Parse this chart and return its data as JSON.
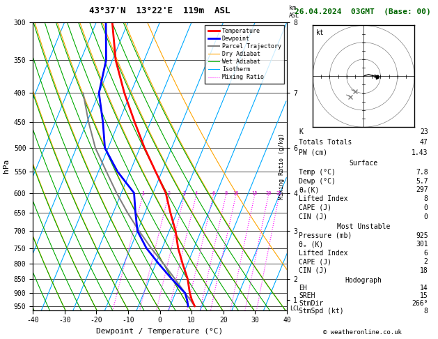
{
  "title_left": "43°37'N  13°22'E  119m  ASL",
  "title_right": "26.04.2024  03GMT  (Base: 00)",
  "xlabel": "Dewpoint / Temperature (°C)",
  "ylabel_left": "hPa",
  "xlim": [
    -40,
    40
  ],
  "pressure_ticks": [
    300,
    350,
    400,
    450,
    500,
    550,
    600,
    650,
    700,
    750,
    800,
    850,
    900,
    950
  ],
  "km_ticks_p": [
    300,
    400,
    500,
    600,
    700,
    850,
    925
  ],
  "km_ticks_v": [
    8,
    7,
    6,
    4,
    3,
    2,
    1
  ],
  "temp_profile": {
    "pressure": [
      950,
      925,
      900,
      850,
      800,
      750,
      700,
      650,
      600,
      550,
      500,
      450,
      400,
      350,
      300
    ],
    "temp": [
      7.8,
      6.0,
      4.5,
      2.0,
      -1.5,
      -5.0,
      -8.0,
      -12.0,
      -16.0,
      -22.0,
      -28.5,
      -35.0,
      -42.0,
      -49.0,
      -55.0
    ]
  },
  "dewpoint_profile": {
    "pressure": [
      950,
      925,
      900,
      850,
      800,
      750,
      700,
      650,
      600,
      550,
      500,
      450,
      400,
      350,
      300
    ],
    "temp": [
      5.7,
      4.5,
      3.0,
      -3.0,
      -9.0,
      -15.0,
      -20.0,
      -23.0,
      -26.0,
      -34.0,
      -41.0,
      -45.0,
      -50.0,
      -52.0,
      -57.0
    ]
  },
  "parcel_profile": {
    "pressure": [
      950,
      925,
      900,
      850,
      800,
      750,
      700,
      650,
      600,
      550,
      500,
      450,
      400
    ],
    "temp": [
      7.8,
      5.5,
      3.0,
      -2.0,
      -7.5,
      -13.5,
      -19.5,
      -25.5,
      -31.5,
      -37.5,
      -44.0,
      -49.5,
      -55.0
    ]
  },
  "mix_ratios": [
    1,
    2,
    3,
    4,
    6,
    8,
    10,
    15,
    20,
    25
  ],
  "legend_items": [
    {
      "label": "Temperature",
      "color": "#FF0000",
      "lw": 2.0,
      "ls": "solid"
    },
    {
      "label": "Dewpoint",
      "color": "#0000FF",
      "lw": 2.0,
      "ls": "solid"
    },
    {
      "label": "Parcel Trajectory",
      "color": "#808080",
      "lw": 1.5,
      "ls": "solid"
    },
    {
      "label": "Dry Adiabat",
      "color": "#FFA500",
      "lw": 0.8,
      "ls": "solid"
    },
    {
      "label": "Wet Adiabat",
      "color": "#00AA00",
      "lw": 0.8,
      "ls": "solid"
    },
    {
      "label": "Isotherm",
      "color": "#00AAFF",
      "lw": 0.8,
      "ls": "solid"
    },
    {
      "label": "Mixing Ratio",
      "color": "#FF00FF",
      "lw": 0.8,
      "ls": "dotted"
    }
  ],
  "stats": {
    "K": "23",
    "Totals Totals": "47",
    "PW (cm)": "1.43",
    "Surface_Temp": "7.8",
    "Surface_Dewp": "5.7",
    "Surface_thetae": "297",
    "Surface_LI": "8",
    "Surface_CAPE": "0",
    "Surface_CIN": "0",
    "MU_Pressure": "925",
    "MU_thetae": "301",
    "MU_LI": "6",
    "MU_CAPE": "2",
    "MU_CIN": "18",
    "EH": "14",
    "SREH": "15",
    "StmDir": "266°",
    "StmSpd": "8"
  },
  "wind_barb_colors": [
    "#AA00AA",
    "#00AAFF",
    "#00BB00",
    "#88BB00",
    "#BBBB00"
  ],
  "wind_barb_pressures": [
    300,
    400,
    500,
    650,
    750,
    925
  ],
  "bg_color": "#FFFFFF",
  "isotherm_color": "#00AAFF",
  "dry_adiabat_color": "#FFA500",
  "wet_adiabat_color": "#00AA00",
  "mix_ratio_color": "#FF00FF",
  "skew": 40
}
